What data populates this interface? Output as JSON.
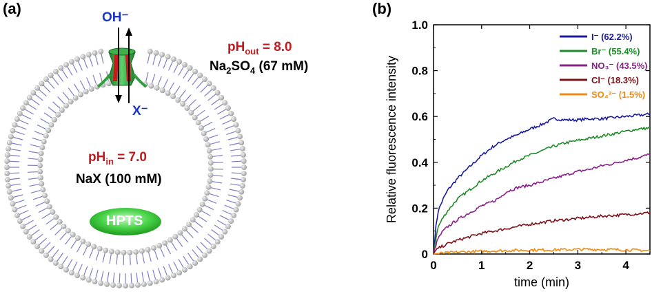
{
  "panel_a": {
    "letter": "(a)",
    "oh_label": "OH⁻",
    "x_label": "X⁻",
    "ph_out": {
      "prefix": "pH",
      "sub": "out",
      "value": " = 8.0"
    },
    "outer_salt": {
      "a": "Na",
      "sub1": "2",
      "b": "SO",
      "sub2": "4",
      "c": " (67 mM)"
    },
    "ph_in": {
      "prefix": "pH",
      "sub": "in",
      "value": " = 7.0"
    },
    "inner_salt": "NaX (100 mM)",
    "probe": "HPTS",
    "colors": {
      "ph_text": "#c0191d",
      "ion_text": "#1a33c8",
      "probe": "#3fcf3f",
      "channel": "#2e9e3e",
      "channel_stripe": "#d0161d",
      "lipid_head": "#b8b8b8",
      "lipid_tail": "#7c7fc4"
    }
  },
  "chart_data": {
    "letter": "(b)",
    "type": "line",
    "xlabel": "time (min)",
    "ylabel": "Relative fluorescence intensity",
    "xlim": [
      0,
      4.5
    ],
    "ylim": [
      0,
      1.0
    ],
    "xticks": [
      0,
      1,
      2,
      3,
      4
    ],
    "yticks": [
      0,
      0.2,
      0.4,
      0.6,
      0.8,
      1.0
    ],
    "ytick_labels": [
      "0",
      "0.2",
      "0.4",
      "0.6",
      "0.8",
      "1.0"
    ],
    "legend_position": "top-right",
    "series": [
      {
        "name": "I⁻ (62.2%)",
        "color": "#1a1aa0",
        "x": [
          0,
          0.05,
          0.1,
          0.2,
          0.3,
          0.5,
          0.75,
          1.0,
          1.25,
          1.5,
          1.75,
          2.0,
          2.25,
          2.5,
          2.75,
          3.0,
          3.25,
          3.5,
          3.75,
          4.0,
          4.25,
          4.5
        ],
        "y": [
          0,
          0.12,
          0.19,
          0.24,
          0.28,
          0.33,
          0.38,
          0.43,
          0.47,
          0.5,
          0.52,
          0.545,
          0.565,
          0.59,
          0.585,
          0.585,
          0.59,
          0.59,
          0.595,
          0.6,
          0.605,
          0.61
        ]
      },
      {
        "name": "Br⁻ (55.4%)",
        "color": "#1f8a2a",
        "x": [
          0,
          0.05,
          0.1,
          0.2,
          0.3,
          0.5,
          0.75,
          1.0,
          1.25,
          1.5,
          1.75,
          2.0,
          2.25,
          2.5,
          2.75,
          3.0,
          3.25,
          3.5,
          3.75,
          4.0,
          4.25,
          4.5
        ],
        "y": [
          0,
          0.07,
          0.12,
          0.16,
          0.19,
          0.24,
          0.28,
          0.32,
          0.35,
          0.38,
          0.41,
          0.43,
          0.45,
          0.47,
          0.485,
          0.495,
          0.505,
          0.515,
          0.525,
          0.535,
          0.545,
          0.55
        ]
      },
      {
        "name": "NO₃⁻ (43.5%)",
        "color": "#8a1f8a",
        "x": [
          0,
          0.05,
          0.1,
          0.2,
          0.3,
          0.5,
          0.75,
          1.0,
          1.25,
          1.4,
          1.5,
          1.75,
          2.0,
          2.25,
          2.5,
          2.75,
          3.0,
          3.25,
          3.5,
          3.75,
          4.0,
          4.25,
          4.5
        ],
        "y": [
          0,
          0.04,
          0.07,
          0.1,
          0.12,
          0.15,
          0.18,
          0.21,
          0.23,
          0.25,
          0.27,
          0.29,
          0.3,
          0.315,
          0.33,
          0.345,
          0.36,
          0.37,
          0.385,
          0.395,
          0.41,
          0.42,
          0.435
        ]
      },
      {
        "name": "Cl⁻ (18.3%)",
        "color": "#7a1018",
        "x": [
          0,
          0.05,
          0.1,
          0.2,
          0.3,
          0.5,
          0.75,
          1.0,
          1.5,
          2.0,
          2.5,
          3.0,
          3.5,
          4.0,
          4.5
        ],
        "y": [
          0,
          0.015,
          0.025,
          0.035,
          0.045,
          0.06,
          0.075,
          0.09,
          0.11,
          0.13,
          0.145,
          0.155,
          0.165,
          0.172,
          0.18
        ]
      },
      {
        "name": "SO₄²⁻ (1.5%)",
        "color": "#f08a10",
        "x": [
          0,
          0.2,
          0.5,
          1.0,
          1.5,
          2.0,
          2.5,
          3.0,
          3.5,
          4.0,
          4.5
        ],
        "y": [
          0,
          0.004,
          0.008,
          0.012,
          0.015,
          0.017,
          0.018,
          0.02,
          0.02,
          0.018,
          0.015
        ]
      }
    ]
  }
}
